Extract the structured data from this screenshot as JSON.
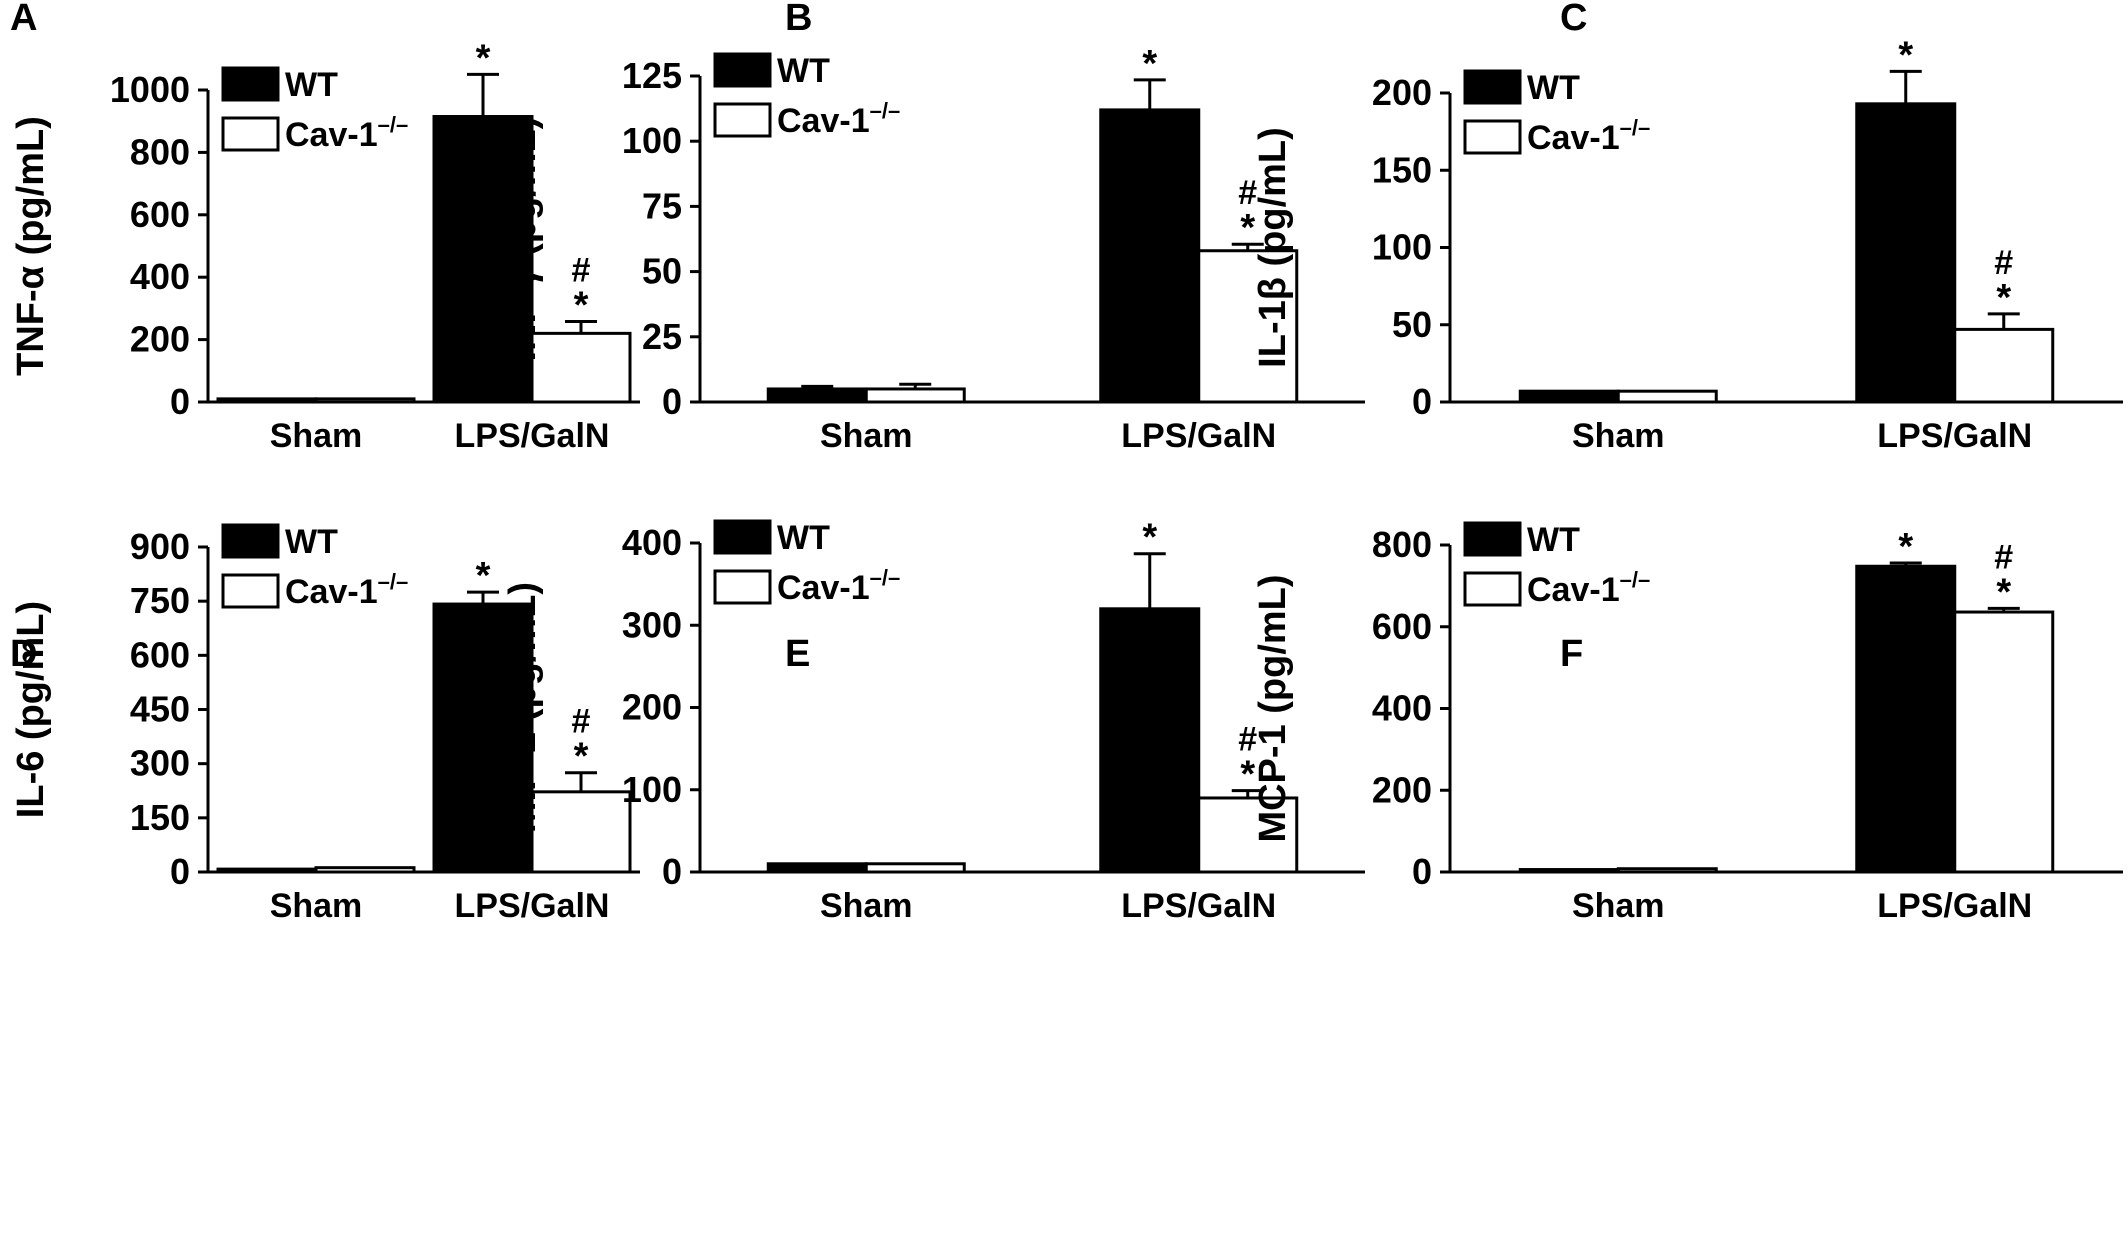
{
  "legend": {
    "wt": "WT",
    "ko_prefix": "Cav-1",
    "ko_sup": "–/–"
  },
  "colors": {
    "wt": "#000000",
    "ko": "#ffffff",
    "axis": "#000000"
  },
  "chart_data": [
    {
      "panel": "A",
      "type": "bar",
      "categories": [
        "Sham",
        "LPS/GalN"
      ],
      "ylabel": "TNF-α (pg/mL)",
      "ylim": [
        0,
        1000
      ],
      "yticks": [
        0,
        200,
        400,
        600,
        800,
        1000
      ],
      "series": [
        {
          "name": "WT",
          "values": [
            10,
            915
          ],
          "errors": [
            0,
            135
          ],
          "marks": [
            "",
            "*"
          ]
        },
        {
          "name": "Cav-1–/–",
          "values": [
            10,
            220
          ],
          "errors": [
            0,
            38
          ],
          "marks": [
            "",
            "#*"
          ]
        }
      ]
    },
    {
      "panel": "B",
      "type": "bar",
      "categories": [
        "Sham",
        "LPS/GalN"
      ],
      "ylabel": "INF-γ (pg/mL)",
      "ylim": [
        0,
        125
      ],
      "yticks": [
        0,
        25,
        50,
        75,
        100,
        125
      ],
      "series": [
        {
          "name": "WT",
          "values": [
            5,
            112
          ],
          "errors": [
            1,
            11.5
          ],
          "marks": [
            "",
            "*"
          ]
        },
        {
          "name": "Cav-1–/–",
          "values": [
            5,
            58
          ],
          "errors": [
            1.8,
            2.5
          ],
          "marks": [
            "",
            "#*"
          ]
        }
      ]
    },
    {
      "panel": "C",
      "type": "bar",
      "categories": [
        "Sham",
        "LPS/GalN"
      ],
      "ylabel": "IL-1β (pg/mL)",
      "ylim": [
        0,
        200
      ],
      "yticks": [
        0,
        50,
        100,
        150,
        200
      ],
      "series": [
        {
          "name": "WT",
          "values": [
            7,
            193
          ],
          "errors": [
            0,
            21
          ],
          "marks": [
            "",
            "*"
          ]
        },
        {
          "name": "Cav-1–/–",
          "values": [
            7,
            47
          ],
          "errors": [
            0,
            10
          ],
          "marks": [
            "",
            "#*"
          ]
        }
      ]
    },
    {
      "panel": "D",
      "type": "bar",
      "categories": [
        "Sham",
        "LPS/GalN"
      ],
      "ylabel": "IL-6 (pg/mL)",
      "ylim": [
        0,
        900
      ],
      "yticks": [
        0,
        150,
        300,
        450,
        600,
        750,
        900
      ],
      "series": [
        {
          "name": "WT",
          "values": [
            8,
            742
          ],
          "errors": [
            0,
            33
          ],
          "marks": [
            "",
            "*"
          ]
        },
        {
          "name": "Cav-1–/–",
          "values": [
            12,
            222
          ],
          "errors": [
            0,
            53
          ],
          "marks": [
            "",
            "#*"
          ]
        }
      ]
    },
    {
      "panel": "E",
      "type": "bar",
      "categories": [
        "Sham",
        "LPS/GalN"
      ],
      "ylabel": "MIP-2 (pg/mL)",
      "ylim": [
        0,
        400
      ],
      "yticks": [
        0,
        100,
        200,
        300,
        400
      ],
      "series": [
        {
          "name": "WT",
          "values": [
            10,
            320
          ],
          "errors": [
            0,
            67
          ],
          "marks": [
            "",
            "*"
          ]
        },
        {
          "name": "Cav-1–/–",
          "values": [
            10,
            90
          ],
          "errors": [
            0,
            9
          ],
          "marks": [
            "",
            "#*"
          ]
        }
      ]
    },
    {
      "panel": "F",
      "type": "bar",
      "categories": [
        "Sham",
        "LPS/GalN"
      ],
      "ylabel": "MCP-1 (pg/mL)",
      "ylim": [
        0,
        800
      ],
      "yticks": [
        0,
        200,
        400,
        600,
        800
      ],
      "series": [
        {
          "name": "WT",
          "values": [
            6,
            748
          ],
          "errors": [
            0,
            8
          ],
          "marks": [
            "",
            "*"
          ]
        },
        {
          "name": "Cav-1–/–",
          "values": [
            8,
            636
          ],
          "errors": [
            0,
            9
          ],
          "marks": [
            "",
            "#*"
          ]
        }
      ]
    }
  ]
}
